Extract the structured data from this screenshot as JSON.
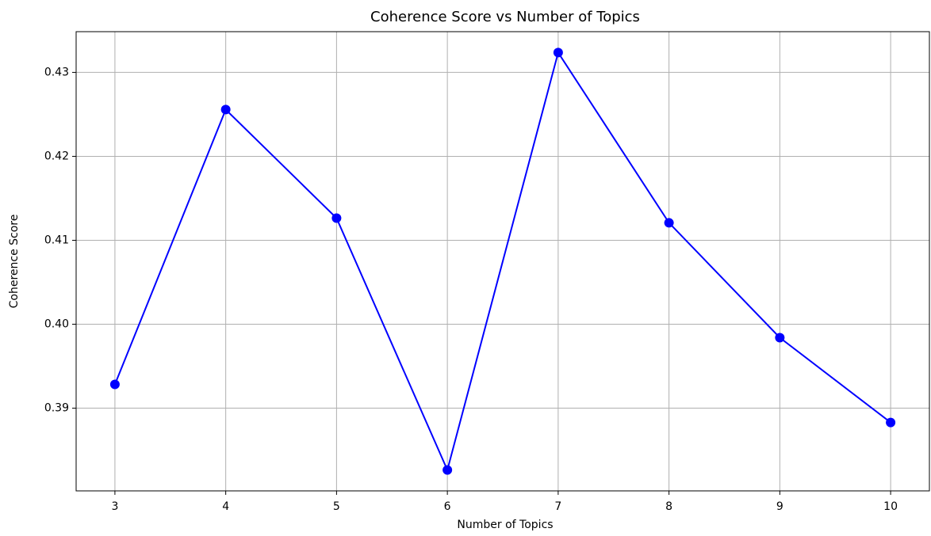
{
  "chart_data": {
    "type": "line",
    "title": "Coherence Score vs Number of Topics",
    "xlabel": "Number of Topics",
    "ylabel": "Coherence Score",
    "x": [
      3,
      4,
      5,
      6,
      7,
      8,
      9,
      10
    ],
    "series": [
      {
        "name": "Coherence Score",
        "color": "#0000ff",
        "values": [
          0.39283,
          0.42557,
          0.41264,
          0.38264,
          0.43236,
          0.41208,
          0.3984,
          0.3883
        ]
      }
    ],
    "xlim": [
      2.65,
      10.35
    ],
    "xticks": [
      3,
      4,
      5,
      6,
      7,
      8,
      9,
      10
    ],
    "ylim": [
      0.38015,
      0.43485
    ],
    "yticks": [
      0.39,
      {
        "value": 0.4,
        "label": "0.40"
      },
      0.41,
      0.42,
      0.43
    ],
    "grid": true,
    "marker": "circle"
  }
}
